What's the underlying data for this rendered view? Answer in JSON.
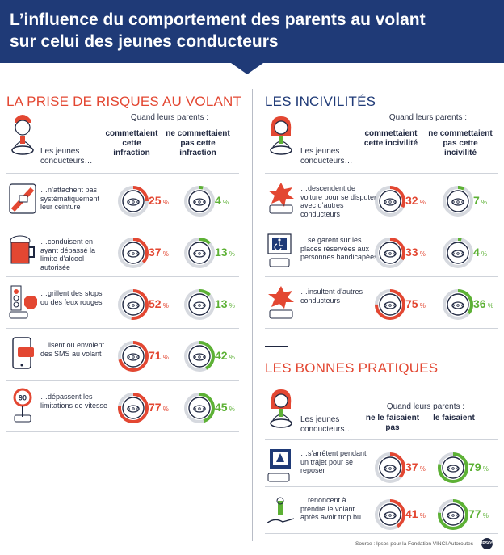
{
  "title_line1": "L’influence du comportement des parents au volant",
  "title_line2": "sur celui des jeunes conducteurs",
  "left": {
    "heading": "LA PRISE DE RISQUES AU VOLANT",
    "question": "Quand leurs parents :",
    "col1": "commettaient cette infraction",
    "col2": "ne commettaient pas cette infraction",
    "jeunes": "Les jeunes conducteurs…",
    "rows": [
      {
        "text": "…n’attachent pas systématiquement leur ceinture",
        "a": "25",
        "b": "4",
        "icon": "seatbelt-icon"
      },
      {
        "text": "…conduisent en ayant dépassé la limite d’alcool autorisée",
        "a": "37",
        "b": "13",
        "icon": "beer-icon"
      },
      {
        "text": "…grillent des stops ou des feux rouges",
        "a": "52",
        "b": "13",
        "icon": "traffic-light-icon"
      },
      {
        "text": "…lisent ou envoient des SMS au volant",
        "a": "71",
        "b": "42",
        "icon": "phone-sms-icon"
      },
      {
        "text": "…dépassent les limitations de vitesse",
        "a": "77",
        "b": "45",
        "icon": "speed-limit-icon"
      }
    ]
  },
  "right_top": {
    "heading": "LES INCIVILITÉS",
    "question": "Quand leurs parents :",
    "col1": "commettaient cette incivilité",
    "col2": "ne commettaient pas cette incivilité",
    "jeunes": "Les jeunes conducteurs…",
    "rows": [
      {
        "text": "…descendent de voiture pour se disputer avec d’autres conducteurs",
        "a": "32",
        "b": "7",
        "icon": "dispute-icon"
      },
      {
        "text": "…se garent sur les places réservées aux personnes handicapées",
        "a": "33",
        "b": "4",
        "icon": "disabled-parking-icon"
      },
      {
        "text": "…insultent d’autres conducteurs",
        "a": "75",
        "b": "36",
        "icon": "insult-icon"
      }
    ]
  },
  "right_bottom": {
    "heading": "LES BONNES PRATIQUES",
    "question": "Quand leurs parents :",
    "col1": "ne le faisaient pas",
    "col2": "le faisaient",
    "jeunes": "Les jeunes conducteurs…",
    "rows": [
      {
        "text": "…s’arrêtent pendant un trajet pour se reposer",
        "a": "37",
        "b": "79",
        "icon": "rest-area-icon"
      },
      {
        "text": "…renoncent à prendre le volant après avoir trop bu",
        "a": "41",
        "b": "77",
        "icon": "hand-keys-icon"
      }
    ]
  },
  "unit": "%",
  "source": "Source : Ipsos pour la Fondation VINCI Autoroutes",
  "logo_text": "IPSOS",
  "colors": {
    "red": "#e34732",
    "green": "#5db135",
    "navy": "#1f3a77"
  }
}
